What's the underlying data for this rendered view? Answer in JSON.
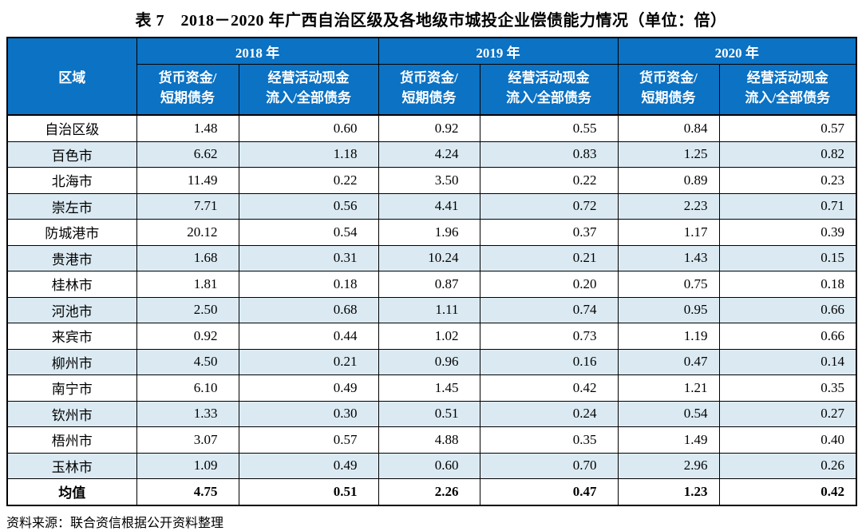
{
  "page": {
    "title": "表 7　2018－2020 年广西自治区级及各地级市城投企业偿债能力情况（单位：倍）",
    "source_note": "资料来源：联合资信根据公开资料整理"
  },
  "colors": {
    "header_bg": "#0b72c4",
    "header_text": "#ffffff",
    "stripe_bg": "#dbeaf2",
    "border": "#000000",
    "body_text": "#000000"
  },
  "table": {
    "region_header": "区域",
    "year_groups": [
      "2018 年",
      "2019 年",
      "2020 年"
    ],
    "sub_headers": [
      "货币资金/\n短期债务",
      "经营活动现金\n流入/全部债务"
    ],
    "rows": [
      {
        "region": "自治区级",
        "values": [
          "1.48",
          "0.60",
          "0.92",
          "0.55",
          "0.84",
          "0.57"
        ]
      },
      {
        "region": "百色市",
        "values": [
          "6.62",
          "1.18",
          "4.24",
          "0.83",
          "1.25",
          "0.82"
        ]
      },
      {
        "region": "北海市",
        "values": [
          "11.49",
          "0.22",
          "3.50",
          "0.22",
          "0.89",
          "0.23"
        ]
      },
      {
        "region": "崇左市",
        "values": [
          "7.71",
          "0.56",
          "4.41",
          "0.72",
          "2.23",
          "0.71"
        ]
      },
      {
        "region": "防城港市",
        "values": [
          "20.12",
          "0.54",
          "1.96",
          "0.37",
          "1.17",
          "0.39"
        ]
      },
      {
        "region": "贵港市",
        "values": [
          "1.68",
          "0.31",
          "10.24",
          "0.21",
          "1.43",
          "0.15"
        ]
      },
      {
        "region": "桂林市",
        "values": [
          "1.81",
          "0.18",
          "0.87",
          "0.20",
          "0.75",
          "0.18"
        ]
      },
      {
        "region": "河池市",
        "values": [
          "2.50",
          "0.68",
          "1.11",
          "0.74",
          "0.95",
          "0.66"
        ]
      },
      {
        "region": "来宾市",
        "values": [
          "0.92",
          "0.44",
          "1.02",
          "0.73",
          "1.19",
          "0.66"
        ]
      },
      {
        "region": "柳州市",
        "values": [
          "4.50",
          "0.21",
          "0.96",
          "0.16",
          "0.47",
          "0.14"
        ]
      },
      {
        "region": "南宁市",
        "values": [
          "6.10",
          "0.49",
          "1.45",
          "0.42",
          "1.21",
          "0.35"
        ]
      },
      {
        "region": "钦州市",
        "values": [
          "1.33",
          "0.30",
          "0.51",
          "0.24",
          "0.54",
          "0.27"
        ]
      },
      {
        "region": "梧州市",
        "values": [
          "3.07",
          "0.57",
          "4.88",
          "0.35",
          "1.49",
          "0.40"
        ]
      },
      {
        "region": "玉林市",
        "values": [
          "1.09",
          "0.49",
          "0.60",
          "0.70",
          "2.96",
          "0.26"
        ]
      },
      {
        "region": "均值",
        "values": [
          "4.75",
          "0.51",
          "2.26",
          "0.47",
          "1.23",
          "0.42"
        ],
        "bold": true
      }
    ]
  }
}
